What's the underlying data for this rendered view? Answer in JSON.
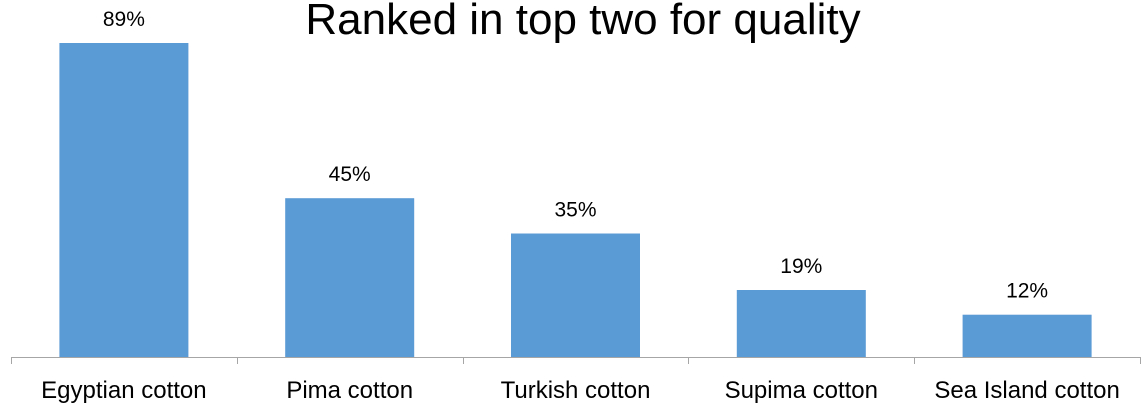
{
  "chart_data": {
    "type": "bar",
    "title": "Ranked in top two for quality",
    "categories": [
      "Egyptian cotton",
      "Pima cotton",
      "Turkish cotton",
      "Supima cotton",
      "Sea Island cotton"
    ],
    "values": [
      89,
      45,
      35,
      19,
      12
    ],
    "value_labels": [
      "89%",
      "45%",
      "35%",
      "19%",
      "12%"
    ],
    "ylim": [
      0,
      100
    ],
    "grid": false,
    "legend": "none",
    "bar_color": "#5B9BD5",
    "axis_color": "#A6A6A6"
  }
}
